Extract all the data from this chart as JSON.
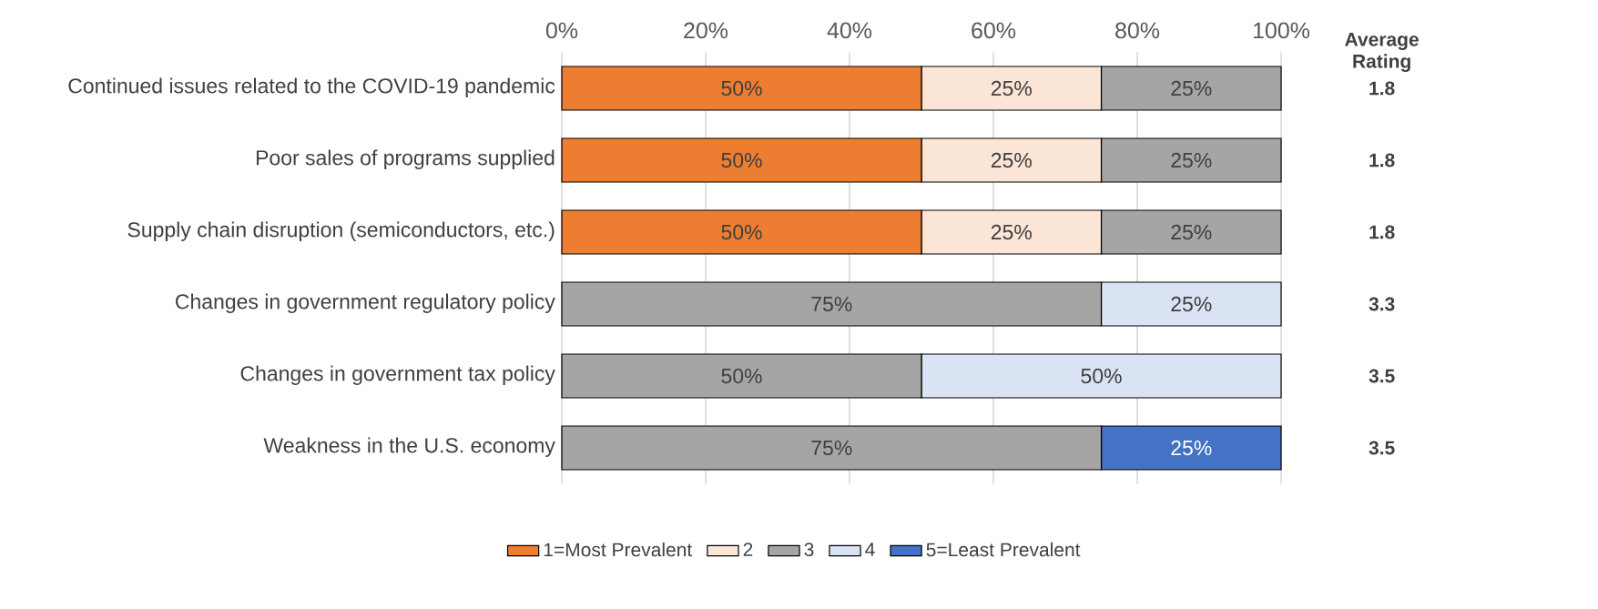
{
  "chart_data": {
    "type": "bar",
    "orientation": "horizontal",
    "stacked": true,
    "categories": [
      "Continued issues related to the COVID-19 pandemic",
      "Poor sales of programs supplied",
      "Supply chain disruption (semiconductors, etc.)",
      "Changes in government regulatory policy",
      "Changes in government tax policy",
      "Weakness in the U.S. economy"
    ],
    "series": [
      {
        "name": "1=Most Prevalent",
        "color": "#ed7d31",
        "values": [
          50,
          50,
          50,
          null,
          null,
          null
        ],
        "value_labels": [
          "50%",
          "50%",
          "50%",
          null,
          null,
          null
        ]
      },
      {
        "name": "2",
        "color": "#fbe5d6",
        "values": [
          25,
          25,
          25,
          null,
          null,
          null
        ],
        "value_labels": [
          "25%",
          "25%",
          "25%",
          null,
          null,
          null
        ]
      },
      {
        "name": "3",
        "color": "#a5a5a5",
        "values": [
          25,
          25,
          25,
          75,
          50,
          75
        ],
        "value_labels": [
          "25%",
          "25%",
          "25%",
          "75%",
          "50%",
          "75%"
        ]
      },
      {
        "name": "4",
        "color": "#dae3f3",
        "values": [
          null,
          null,
          null,
          25,
          50,
          null
        ],
        "value_labels": [
          null,
          null,
          null,
          "25%",
          "50%",
          null
        ]
      },
      {
        "name": "5=Least Prevalent",
        "color": "#4472c4",
        "values": [
          null,
          null,
          null,
          null,
          null,
          25
        ],
        "value_labels": [
          null,
          null,
          null,
          null,
          null,
          "25%"
        ]
      }
    ],
    "xlim": [
      0,
      100
    ],
    "xticks": [
      {
        "value": 0,
        "label": "0%"
      },
      {
        "value": 20,
        "label": "20%"
      },
      {
        "value": 40,
        "label": "40%"
      },
      {
        "value": 60,
        "label": "60%"
      },
      {
        "value": 80,
        "label": "80%"
      },
      {
        "value": 100,
        "label": "100%"
      }
    ],
    "grid": "x",
    "legend": "bottom",
    "annotations": [
      "Average Rating",
      "1.8",
      "1.8",
      "1.8",
      "3.3",
      "3.5",
      "3.5"
    ]
  }
}
